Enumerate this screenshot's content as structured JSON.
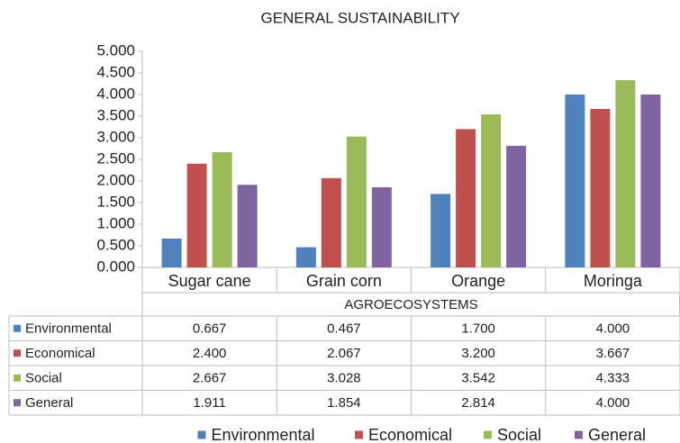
{
  "chart_data": {
    "type": "bar",
    "title": "GENERAL SUSTAINABILITY",
    "x_label": "AGROECOSYSTEMS",
    "categories": [
      "Sugar cane",
      "Grain corn",
      "Orange",
      "Moringa"
    ],
    "series": [
      {
        "name": "Environmental",
        "color": "#4f81bd",
        "values": [
          0.667,
          0.467,
          1.7,
          4
        ],
        "value_labels": [
          "0.667",
          "0.467",
          "1.700",
          "4.000"
        ]
      },
      {
        "name": "Economical",
        "color": "#c0504d",
        "values": [
          2.4,
          2.067,
          3.2,
          3.667
        ],
        "value_labels": [
          "2.400",
          "2.067",
          "3.200",
          "3.667"
        ]
      },
      {
        "name": "Social",
        "color": "#9bbb59",
        "values": [
          2.667,
          3.028,
          3.542,
          4.333
        ],
        "value_labels": [
          "2.667",
          "3.028",
          "3.542",
          "4.333"
        ]
      },
      {
        "name": "General",
        "color": "#8064a2",
        "values": [
          1.911,
          1.854,
          2.814,
          4
        ],
        "value_labels": [
          "1.911",
          "1.854",
          "2.814",
          "4.000"
        ]
      }
    ],
    "ylim": [
      0,
      5
    ],
    "yticks": [
      {
        "value": 0,
        "label": "0.000"
      },
      {
        "value": 0.5,
        "label": "0.500"
      },
      {
        "value": 1,
        "label": "1.000"
      },
      {
        "value": 1.5,
        "label": "1.500"
      },
      {
        "value": 2,
        "label": "2.000"
      },
      {
        "value": 2.5,
        "label": "2.500"
      },
      {
        "value": 3,
        "label": "3.000"
      },
      {
        "value": 3.5,
        "label": "3.500"
      },
      {
        "value": 4,
        "label": "4.000"
      },
      {
        "value": 4.5,
        "label": "4.500"
      },
      {
        "value": 5,
        "label": "5.000"
      }
    ],
    "grid": false,
    "legend": "bottom"
  }
}
